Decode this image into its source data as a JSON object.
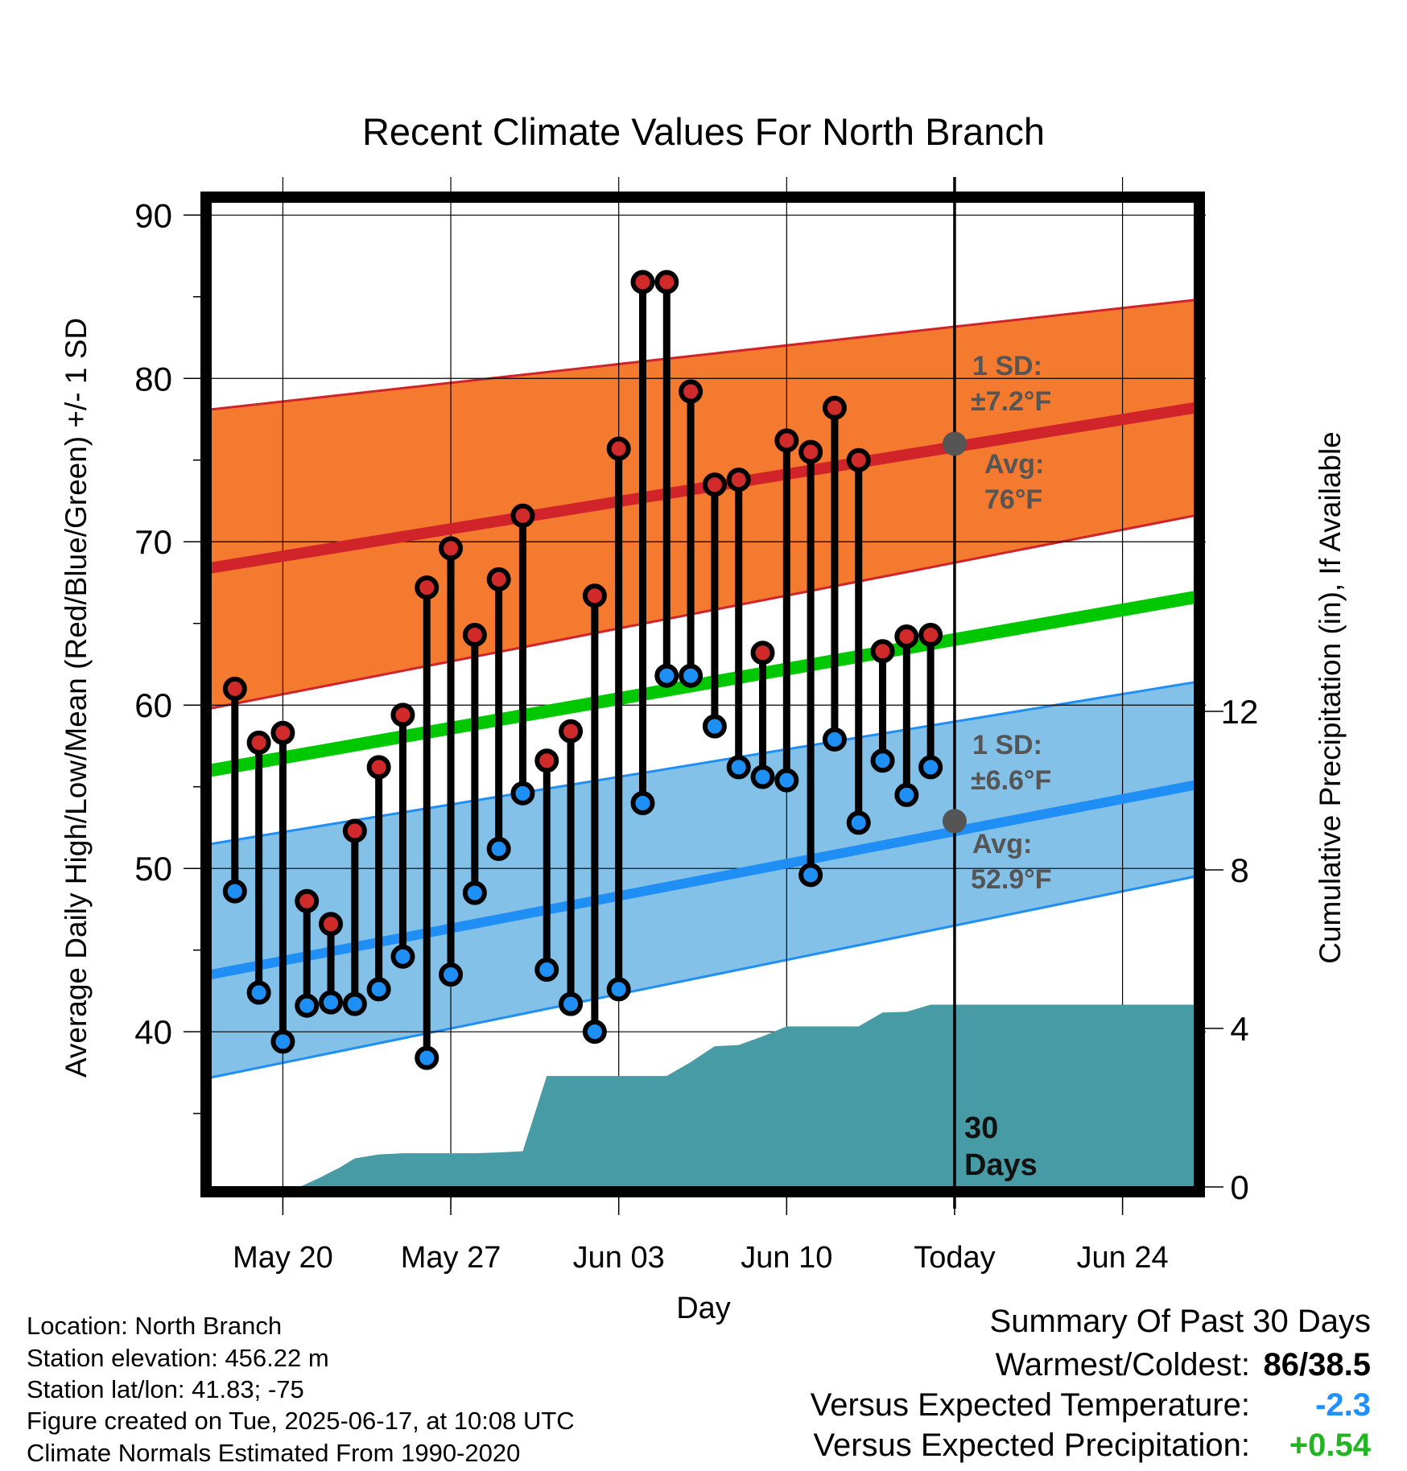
{
  "chart_data": {
    "type": "line",
    "title": "Recent Climate Values For North Branch",
    "xlabel": "Day",
    "ylabel_left": "Average Daily High/Low/Mean (Red/Blue/Green) +/- 1 SD",
    "ylabel_right": "Cumulative Precipitation (in), If Available",
    "x_ticks": [
      {
        "day": 20,
        "label": "May 20"
      },
      {
        "day": 27,
        "label": "May 27"
      },
      {
        "day": 34,
        "label": "Jun 03"
      },
      {
        "day": 41,
        "label": "Jun 10"
      },
      {
        "day": 48,
        "label": "Today"
      },
      {
        "day": 55,
        "label": "Jun 24"
      }
    ],
    "y_left_ticks": [
      40,
      50,
      60,
      70,
      80,
      90
    ],
    "y_left_range": [
      30.5,
      91
    ],
    "y_right_ticks": [
      0,
      4,
      8,
      12
    ],
    "y_right_range": [
      0,
      12
    ],
    "x_range_day_of_may": [
      17,
      58
    ],
    "today_day_of_may": 48,
    "period_label": "30\nDays",
    "normals": {
      "high_avg": [
        68.4,
        78.2
      ],
      "high_sd_upper": [
        78.1,
        84.8
      ],
      "high_sd_lower": [
        59.8,
        71.6
      ],
      "low_avg": [
        43.5,
        55.1
      ],
      "low_sd_upper": [
        51.5,
        61.4
      ],
      "low_sd_lower": [
        37.2,
        49.5
      ],
      "mean_avg": [
        56.0,
        66.6
      ]
    },
    "high_annotation": {
      "sd_label": "1 SD:",
      "sd_value": "±7.2°F",
      "avg_label": "Avg:",
      "avg_value": "76°F",
      "avg_marker": 76
    },
    "low_annotation": {
      "sd_label": "1 SD:",
      "sd_value": "±6.6°F",
      "avg_label": "Avg:",
      "avg_value": "52.9°F",
      "avg_marker": 52.9
    },
    "daily": {
      "days": [
        18,
        19,
        20,
        21,
        22,
        23,
        24,
        25,
        26,
        27,
        28,
        29,
        30,
        31,
        32,
        33,
        34,
        35,
        36,
        37,
        38,
        39,
        40,
        41,
        42,
        43,
        44,
        45,
        46,
        47
      ],
      "highs": [
        61,
        57.7,
        58.3,
        48,
        46.6,
        52.3,
        56.2,
        59.4,
        67.2,
        69.6,
        64.3,
        67.7,
        71.6,
        56.6,
        58.4,
        66.7,
        75.7,
        85.9,
        85.9,
        79.2,
        73.5,
        73.8,
        63.2,
        76.2,
        75.5,
        78.2,
        75,
        63.3,
        64.2,
        64.3
      ],
      "lows": [
        48.6,
        42.4,
        39.4,
        41.6,
        41.8,
        41.7,
        42.6,
        44.6,
        38.4,
        43.5,
        48.5,
        51.2,
        54.6,
        43.8,
        41.7,
        40,
        42.6,
        54,
        61.8,
        61.8,
        58.7,
        56.2,
        55.6,
        55.4,
        49.6,
        57.9,
        52.8,
        56.6,
        54.5,
        56.2
      ]
    },
    "precip_cumulative": [
      [
        20.7,
        0
      ],
      [
        21.5,
        0.22
      ],
      [
        22.4,
        0.5
      ],
      [
        23,
        0.72
      ],
      [
        24,
        0.82
      ],
      [
        25,
        0.85
      ],
      [
        28,
        0.85
      ],
      [
        29,
        0.87
      ],
      [
        30,
        0.9
      ],
      [
        31,
        2.8
      ],
      [
        34,
        2.8
      ],
      [
        35,
        2.8
      ],
      [
        36,
        2.8
      ],
      [
        37,
        3.15
      ],
      [
        38,
        3.55
      ],
      [
        39,
        3.58
      ],
      [
        40,
        3.8
      ],
      [
        41,
        4.05
      ],
      [
        44,
        4.05
      ],
      [
        45,
        4.4
      ],
      [
        46,
        4.42
      ],
      [
        47,
        4.6
      ],
      [
        58,
        4.6
      ]
    ],
    "colors": {
      "high_band": "#f47a2f",
      "high_line": "#d0242a",
      "low_band": "#83c1e8",
      "low_line": "#1f8ef5",
      "mean_line": "#00c800",
      "precip": "#479ba4",
      "high_dot": "#d12a2a",
      "low_dot": "#1e90f5",
      "annotation": "#555555"
    },
    "grid": true
  },
  "info": {
    "location": "Location: North Branch",
    "elevation": "Station elevation: 456.22 m",
    "latlon": "Station lat/lon: 41.83; -75",
    "created": "Figure created on Tue, 2025-06-17, at 10:08 UTC",
    "normals": "Climate Normals Estimated From 1990-2020"
  },
  "summary": {
    "title": "Summary Of Past 30 Days",
    "warm_cold_label": "Warmest/Coldest:",
    "warmest": "86",
    "coldest": "/38.5",
    "temp_label": "Versus Expected Temperature:",
    "temp_value": "-2.3",
    "temp_color": "#1e90ff",
    "precip_label": "Versus Expected Precipitation:",
    "precip_value": "+0.54",
    "precip_color": "#22b422"
  }
}
